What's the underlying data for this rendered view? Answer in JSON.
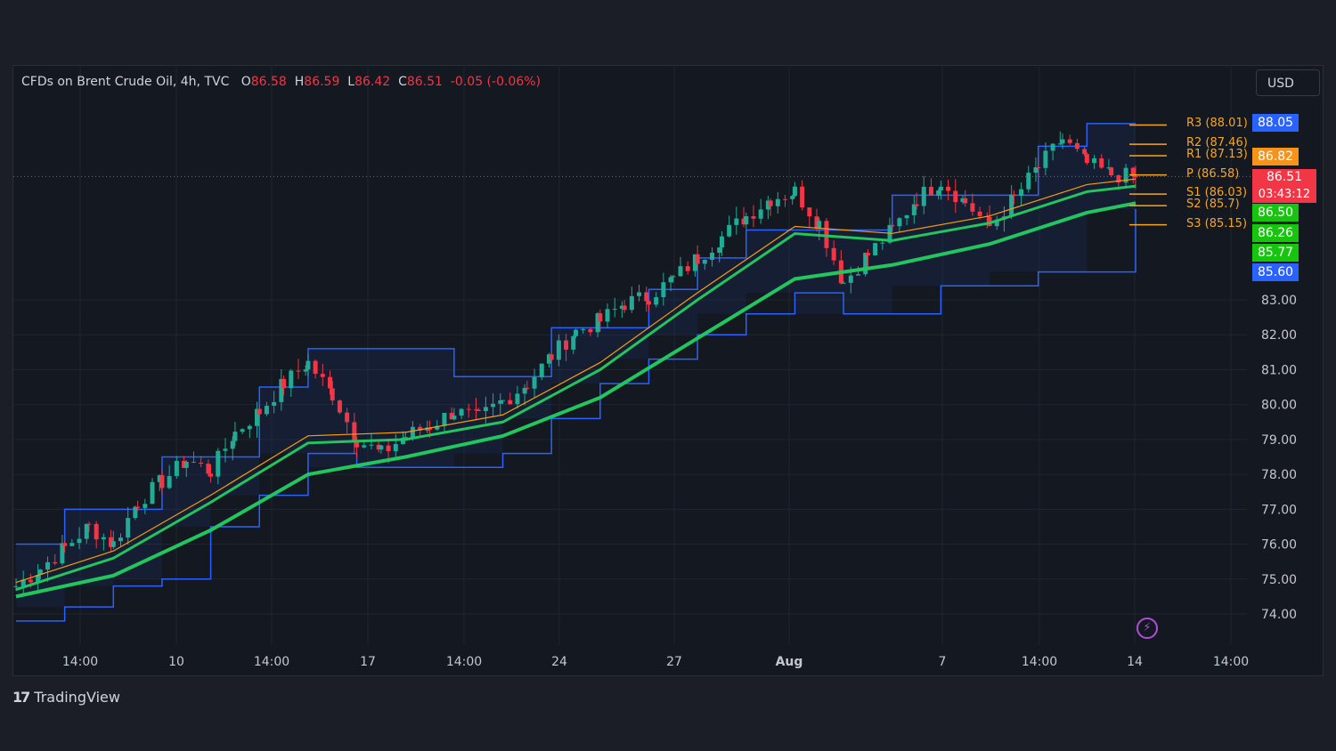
{
  "header": {
    "title": "CFDs on Brent Crude Oil, 4h, TVC",
    "o_label": "O",
    "o_value": "86.58",
    "h_label": "H",
    "h_value": "86.59",
    "l_label": "L",
    "l_value": "86.42",
    "c_label": "C",
    "c_value": "86.51",
    "change": "-0.05 (-0.06%)"
  },
  "currency": "USD",
  "brand": {
    "name": "TradingView",
    "icon": "tradingview-logo-icon"
  },
  "colors": {
    "up": "#22ab94",
    "down": "#f23645",
    "donchian": "#2962ff",
    "ema_fast": "#22c55e",
    "ema_slow": "#f59e0b",
    "pivot": "#f5a623"
  },
  "price_tags": [
    {
      "value": "88.05",
      "color": "#2962ff"
    },
    {
      "value": "86.82",
      "color": "#f7931a"
    },
    {
      "value": "86.51",
      "sub": "03:43:12",
      "color": "#f23645"
    },
    {
      "value": "86.50",
      "color": "#16c60c"
    },
    {
      "value": "86.26",
      "color": "#16c60c"
    },
    {
      "value": "85.77",
      "color": "#16c60c"
    },
    {
      "value": "85.60",
      "color": "#2962ff"
    }
  ],
  "pivots": [
    {
      "label": "R3 (88.01)",
      "value": 88.01
    },
    {
      "label": "R2 (87.46)",
      "value": 87.46
    },
    {
      "label": "R1 (87.13)",
      "value": 87.13
    },
    {
      "label": "P (86.58)",
      "value": 86.58
    },
    {
      "label": "S1 (86.03)",
      "value": 86.03
    },
    {
      "label": "S2 (85.7)",
      "value": 85.7
    },
    {
      "label": "S3 (85.15)",
      "value": 85.15
    }
  ],
  "chart_data": {
    "type": "line",
    "title": "CFDs on Brent Crude Oil, 4h, TVC",
    "y_ticks": [
      "74.00",
      "75.00",
      "76.00",
      "77.00",
      "78.00",
      "79.00",
      "80.00",
      "81.00",
      "82.00",
      "83.00"
    ],
    "x_ticks": [
      "14:00",
      "10",
      "14:00",
      "17",
      "14:00",
      "24",
      "27",
      "Aug",
      "7",
      "14:00",
      "14",
      "14:00"
    ],
    "last_price": 86.51,
    "series": [
      {
        "name": "Close",
        "x": [
          0,
          10,
          20,
          30,
          40,
          50,
          60,
          70,
          80,
          90,
          100,
          110,
          120,
          130,
          140,
          150,
          160,
          170,
          180,
          190,
          200,
          210,
          220,
          230,
          240,
          250,
          260,
          270,
          280,
          290,
          300,
          310,
          320,
          330,
          340,
          350,
          360,
          370,
          380,
          390,
          400,
          410,
          420,
          430,
          440,
          450,
          460
        ],
        "values": [
          74.8,
          75.3,
          75.9,
          76.5,
          76.0,
          77.2,
          77.8,
          78.4,
          78.1,
          79.2,
          79.8,
          80.6,
          81.2,
          80.3,
          79.0,
          78.6,
          79.1,
          79.4,
          79.8,
          79.6,
          80.1,
          80.6,
          81.4,
          82.1,
          82.4,
          82.9,
          83.1,
          83.6,
          84.2,
          84.8,
          85.4,
          85.9,
          86.1,
          85.2,
          83.5,
          84.3,
          85.0,
          85.9,
          86.4,
          85.8,
          85.1,
          85.9,
          86.8,
          87.6,
          86.9,
          86.6,
          86.51
        ]
      },
      {
        "name": "EMA fast",
        "x": [
          0,
          40,
          80,
          120,
          160,
          200,
          240,
          280,
          320,
          360,
          400,
          440,
          460
        ],
        "values": [
          74.7,
          75.6,
          77.2,
          78.9,
          79.0,
          79.5,
          81.0,
          83.0,
          84.9,
          84.7,
          85.2,
          86.1,
          86.26
        ]
      },
      {
        "name": "EMA slow",
        "x": [
          0,
          40,
          80,
          120,
          160,
          200,
          240,
          280,
          320,
          360,
          400,
          440,
          460
        ],
        "values": [
          74.5,
          75.1,
          76.4,
          78.0,
          78.5,
          79.1,
          80.2,
          81.9,
          83.6,
          84.0,
          84.6,
          85.5,
          85.77
        ]
      },
      {
        "name": "Donchian upper",
        "x": [
          0,
          20,
          40,
          60,
          80,
          100,
          120,
          140,
          160,
          180,
          200,
          220,
          240,
          260,
          280,
          300,
          320,
          340,
          360,
          380,
          400,
          420,
          440,
          460
        ],
        "values": [
          76.0,
          77.0,
          77.0,
          78.5,
          78.5,
          80.5,
          81.6,
          81.6,
          81.6,
          80.8,
          80.8,
          82.2,
          82.2,
          83.3,
          84.2,
          85.0,
          85.0,
          85.0,
          86.0,
          86.0,
          86.0,
          87.4,
          88.05,
          88.05
        ]
      },
      {
        "name": "Donchian lower",
        "x": [
          0,
          20,
          40,
          60,
          80,
          100,
          120,
          140,
          160,
          180,
          200,
          220,
          240,
          260,
          280,
          300,
          320,
          340,
          360,
          380,
          400,
          420,
          440,
          460
        ],
        "values": [
          73.8,
          74.2,
          74.8,
          75.0,
          76.5,
          77.4,
          78.6,
          78.2,
          78.2,
          78.2,
          78.6,
          79.6,
          80.6,
          81.3,
          82.0,
          82.6,
          83.2,
          82.6,
          82.6,
          83.4,
          83.4,
          83.8,
          83.8,
          85.6
        ]
      }
    ]
  }
}
